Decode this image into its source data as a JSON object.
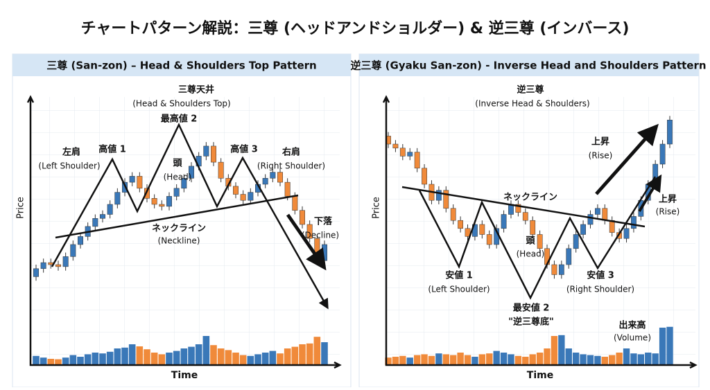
{
  "title": "チャートパターン解説：三尊 (ヘッドアンドショルダー) & 逆三尊 (インバース)",
  "chart_data": [
    {
      "type": "candlestick",
      "title": "三尊 (San-zon) – Head & Shoulders Top Pattern",
      "x_label": "Time",
      "y_label": "Price",
      "up_color": "#3a78b8",
      "down_color": "#f08a3a",
      "ylim": [
        0,
        100
      ],
      "volume_lim": [
        0,
        100
      ],
      "annotations": [
        "三尊天井",
        "(Head & Shoulders Top)",
        "最高値 2",
        "高値 1",
        "左肩",
        "(Left Shoulder)",
        "頭",
        "(Head)",
        "高値 3",
        "右肩",
        "(Right Shoulder)",
        "ネックライン",
        "(Neckline)",
        "下落",
        "(Decline)"
      ],
      "open": [
        14,
        18,
        21,
        20,
        19,
        24,
        30,
        34,
        39,
        43,
        45,
        50,
        56,
        61,
        64,
        58,
        53,
        50,
        49,
        54,
        58,
        63,
        69,
        74,
        79,
        71,
        63,
        59,
        55,
        52,
        56,
        60,
        63,
        66,
        61,
        54,
        47,
        40,
        33,
        22
      ],
      "high": [
        20,
        23,
        23,
        22,
        26,
        32,
        36,
        41,
        45,
        47,
        52,
        58,
        63,
        66,
        66,
        60,
        55,
        52,
        56,
        60,
        65,
        71,
        76,
        81,
        81,
        73,
        65,
        61,
        57,
        58,
        62,
        65,
        68,
        68,
        63,
        56,
        49,
        42,
        35,
        32
      ],
      "low": [
        12,
        16,
        18,
        17,
        17,
        22,
        28,
        32,
        37,
        41,
        43,
        48,
        54,
        59,
        56,
        51,
        48,
        47,
        47,
        52,
        56,
        61,
        67,
        72,
        69,
        61,
        57,
        53,
        50,
        50,
        54,
        58,
        61,
        59,
        52,
        45,
        38,
        31,
        20,
        20
      ],
      "close": [
        18,
        21,
        20,
        19,
        24,
        30,
        34,
        39,
        43,
        45,
        50,
        56,
        61,
        64,
        58,
        53,
        50,
        49,
        54,
        58,
        63,
        69,
        74,
        79,
        71,
        63,
        59,
        55,
        52,
        56,
        60,
        63,
        66,
        61,
        54,
        47,
        40,
        33,
        22,
        30
      ],
      "volume": [
        22,
        18,
        15,
        14,
        18,
        24,
        20,
        26,
        30,
        28,
        32,
        40,
        42,
        50,
        45,
        38,
        30,
        26,
        30,
        34,
        40,
        44,
        50,
        70,
        48,
        40,
        36,
        30,
        24,
        22,
        26,
        30,
        34,
        28,
        40,
        44,
        50,
        52,
        68,
        55
      ]
    },
    {
      "type": "candlestick",
      "title": "逆三尊 (Gyaku San-zon) - Inverse Head and Shoulders Pattern",
      "x_label": "Time",
      "y_label": "Price",
      "up_color": "#3a78b8",
      "down_color": "#f08a3a",
      "ylim": [
        0,
        100
      ],
      "volume_lim": [
        0,
        100
      ],
      "annotations": [
        "逆三尊",
        "(Inverse Head & Shoulders)",
        "ネックライン",
        "安値 1",
        "(Left Shoulder)",
        "頭",
        "(Head)",
        "最安値 2",
        "\"逆三尊底\"",
        "安値 3",
        "(Right Shoulder)",
        "上昇",
        "(Rise)",
        "上昇",
        "(Rise)",
        "出来高",
        "(Volume)"
      ],
      "open": [
        84,
        80,
        78,
        74,
        76,
        68,
        60,
        52,
        57,
        48,
        42,
        38,
        34,
        40,
        35,
        30,
        38,
        45,
        50,
        46,
        42,
        35,
        28,
        20,
        15,
        20,
        28,
        35,
        40,
        45,
        48,
        42,
        36,
        33,
        38,
        44,
        52,
        60,
        70,
        80
      ],
      "high": [
        86,
        82,
        80,
        78,
        78,
        70,
        62,
        59,
        59,
        50,
        44,
        40,
        42,
        42,
        37,
        40,
        47,
        52,
        52,
        48,
        44,
        37,
        30,
        22,
        22,
        30,
        37,
        42,
        47,
        50,
        50,
        44,
        38,
        40,
        46,
        54,
        62,
        72,
        82,
        94
      ],
      "low": [
        78,
        76,
        72,
        72,
        66,
        58,
        50,
        50,
        46,
        40,
        36,
        32,
        32,
        33,
        28,
        28,
        36,
        43,
        44,
        40,
        33,
        26,
        18,
        13,
        13,
        18,
        26,
        33,
        38,
        43,
        40,
        34,
        31,
        31,
        36,
        42,
        50,
        58,
        68,
        78
      ],
      "close": [
        80,
        78,
        74,
        76,
        68,
        60,
        52,
        57,
        48,
        42,
        38,
        34,
        40,
        35,
        30,
        38,
        45,
        50,
        46,
        42,
        35,
        28,
        20,
        15,
        20,
        28,
        35,
        40,
        45,
        48,
        42,
        36,
        33,
        38,
        44,
        52,
        60,
        70,
        80,
        92
      ],
      "volume": [
        18,
        20,
        22,
        18,
        24,
        26,
        22,
        28,
        26,
        24,
        30,
        24,
        20,
        26,
        28,
        34,
        30,
        26,
        22,
        20,
        26,
        30,
        40,
        70,
        72,
        40,
        30,
        26,
        24,
        22,
        20,
        24,
        30,
        40,
        28,
        26,
        30,
        28,
        90,
        92
      ]
    }
  ]
}
